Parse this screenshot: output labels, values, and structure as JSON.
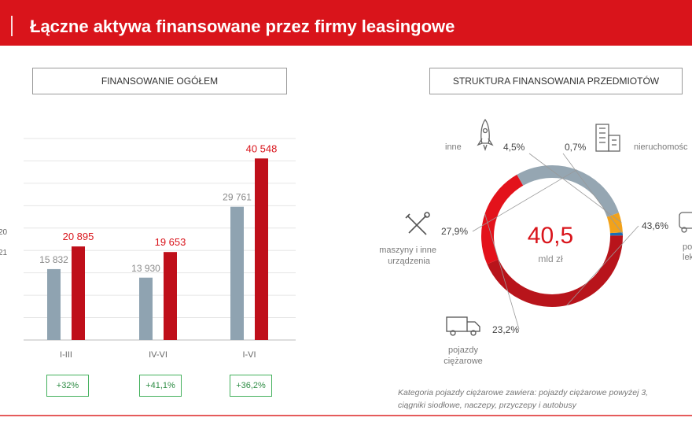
{
  "header": {
    "title": "Łączne aktywa finansowane przez firmy leasingowe"
  },
  "left_panel": {
    "title": "FINANSOWANIE OGÓŁEM",
    "legend_fragments": [
      "20",
      "21"
    ],
    "growth": [
      "+32%",
      "+41,1%",
      "+36,2%"
    ]
  },
  "right_panel": {
    "title": "STRUKTURA FINANSOWANIA PRZEDMIOTÓW",
    "center_value": "40,5",
    "center_unit": "mld zł",
    "labels": {
      "inne": "inne",
      "nieruchomosci": "nieruchomośc",
      "pojazdy_lekkie_line1": "po",
      "pojazdy_lekkie_line2": "lek",
      "maszyny_line1": "maszyny i inne",
      "maszyny_line2": "urządzenia",
      "ciezarowe_line1": "pojazdy",
      "ciezarowe_line2": "ciężarowe"
    },
    "note_line1": "Kategoria pojazdy ciężarowe zawiera: pojazdy ciężarowe powyżej 3,",
    "note_line2": "ciągniki siodłowe, naczepy, przyczepy i autobusy"
  },
  "colors": {
    "accent_red": "#d9141b",
    "dark_red": "#b8141b",
    "bar_2020": "#8fa3b1",
    "bar_2021": "#bf0f1a",
    "seg_gray": "#95a6b2",
    "seg_orange": "#f2a21a",
    "seg_blue": "#1b6fb6",
    "growth_green": "#43b05c"
  },
  "icons": [
    "rocket-icon",
    "building-icon",
    "truck-icon",
    "tools-icon",
    "car-icon"
  ],
  "chart_data": [
    {
      "type": "bar",
      "title": "FINANSOWANIE OGÓŁEM",
      "categories": [
        "I-III",
        "IV-VI",
        "I-VI"
      ],
      "series": [
        {
          "values": [
            15832,
            13930,
            29761
          ],
          "labels": [
            "15 832",
            "13 930",
            "29 761"
          ],
          "color": "#8fa3b1"
        },
        {
          "values": [
            20895,
            19653,
            40548
          ],
          "labels": [
            "20 895",
            "19 653",
            "40 548"
          ],
          "color": "#bf0f1a"
        }
      ],
      "ylim": [
        0,
        45000
      ],
      "grid": true
    },
    {
      "type": "pie",
      "title": "STRUKTURA FINANSOWANIA PRZEDMIOTÓW",
      "slices": [
        {
          "name": "nieruchomośc",
          "value": 0.7,
          "label": "0,7%",
          "color": "#1b6fb6"
        },
        {
          "name": "po / lek",
          "value": 43.6,
          "label": "43,6%",
          "color": "#b8141b"
        },
        {
          "name": "pojazdy ciężarowe",
          "value": 23.2,
          "label": "23,2%",
          "color": "#e3121b"
        },
        {
          "name": "maszyny i inne urządzenia",
          "value": 27.9,
          "label": "27,9%",
          "color": "#95a6b2"
        },
        {
          "name": "inne",
          "value": 4.5,
          "label": "4,5%",
          "color": "#f2a21a"
        }
      ],
      "center_value": "40,5",
      "center_unit": "mld zł"
    }
  ]
}
